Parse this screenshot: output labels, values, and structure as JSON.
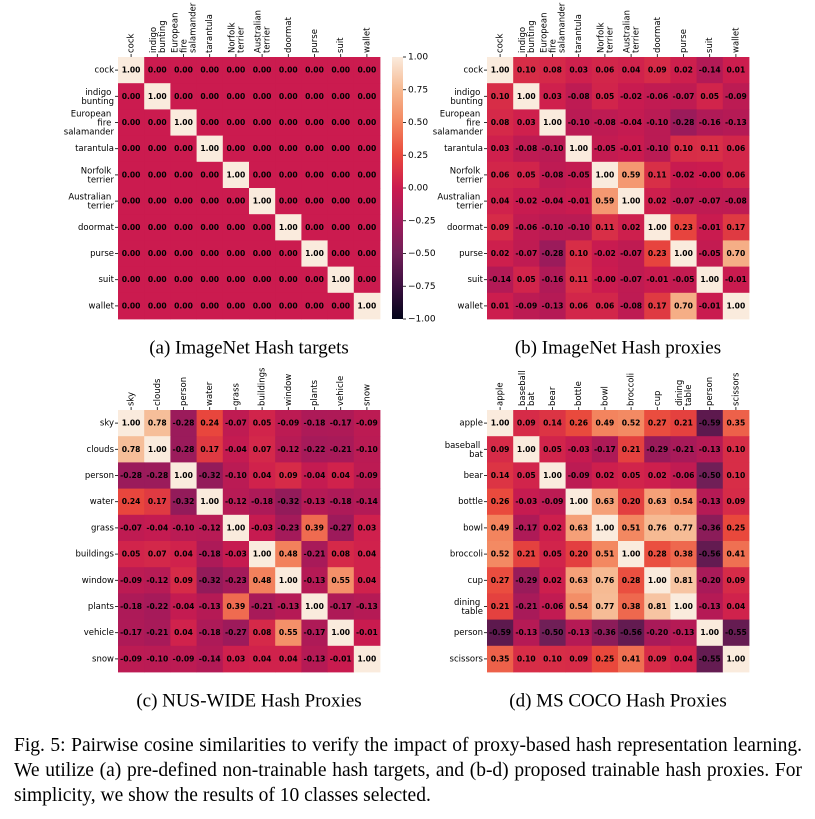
{
  "chart_data": [
    {
      "type": "heatmap",
      "caption": "(a) ImageNet Hash targets",
      "vlim": [
        -1,
        1
      ],
      "categories": [
        "cock",
        "indigo bunting",
        "European fire salamander",
        "tarantula",
        "Norfolk terrier",
        "Australian terrier",
        "doormat",
        "purse",
        "suit",
        "wallet"
      ],
      "values": [
        [
          1,
          0,
          0,
          0,
          0,
          0,
          0,
          0,
          0,
          0
        ],
        [
          0,
          1,
          0,
          0,
          0,
          0,
          0,
          0,
          0,
          0
        ],
        [
          0,
          0,
          1,
          0,
          0,
          0,
          0,
          0,
          0,
          0
        ],
        [
          0,
          0,
          0,
          1,
          0,
          0,
          0,
          0,
          0,
          0
        ],
        [
          0,
          0,
          0,
          0,
          1,
          0,
          0,
          0,
          0,
          0
        ],
        [
          0,
          0,
          0,
          0,
          0,
          1,
          0,
          0,
          0,
          0
        ],
        [
          0,
          0,
          0,
          0,
          0,
          0,
          1,
          0,
          0,
          0
        ],
        [
          0,
          0,
          0,
          0,
          0,
          0,
          0,
          1,
          0,
          0
        ],
        [
          0,
          0,
          0,
          0,
          0,
          0,
          0,
          0,
          1,
          0
        ],
        [
          0,
          0,
          0,
          0,
          0,
          0,
          0,
          0,
          0,
          1
        ]
      ],
      "value_labels": [
        [
          "1.00",
          "0.00",
          "0.00",
          "0.00",
          "0.00",
          "0.00",
          "0.00",
          "0.00",
          "0.00",
          "0.00"
        ],
        [
          "0.00",
          "1.00",
          "0.00",
          "0.00",
          "0.00",
          "0.00",
          "0.00",
          "0.00",
          "0.00",
          "0.00"
        ],
        [
          "0.00",
          "0.00",
          "1.00",
          "0.00",
          "0.00",
          "0.00",
          "0.00",
          "0.00",
          "0.00",
          "0.00"
        ],
        [
          "0.00",
          "0.00",
          "0.00",
          "1.00",
          "0.00",
          "0.00",
          "0.00",
          "0.00",
          "0.00",
          "0.00"
        ],
        [
          "0.00",
          "0.00",
          "0.00",
          "0.00",
          "1.00",
          "0.00",
          "0.00",
          "0.00",
          "0.00",
          "0.00"
        ],
        [
          "0.00",
          "0.00",
          "0.00",
          "0.00",
          "0.00",
          "1.00",
          "0.00",
          "0.00",
          "0.00",
          "0.00"
        ],
        [
          "0.00",
          "0.00",
          "0.00",
          "0.00",
          "0.00",
          "0.00",
          "1.00",
          "0.00",
          "0.00",
          "0.00"
        ],
        [
          "0.00",
          "0.00",
          "0.00",
          "0.00",
          "0.00",
          "0.00",
          "0.00",
          "1.00",
          "0.00",
          "0.00"
        ],
        [
          "0.00",
          "0.00",
          "0.00",
          "0.00",
          "0.00",
          "0.00",
          "0.00",
          "0.00",
          "1.00",
          "0.00"
        ],
        [
          "0.00",
          "0.00",
          "0.00",
          "0.00",
          "0.00",
          "0.00",
          "0.00",
          "0.00",
          "0.00",
          "1.00"
        ]
      ],
      "colorbar_ticks": [
        {
          "value": 1,
          "label": "1.00"
        },
        {
          "value": 0.75,
          "label": "0.75"
        },
        {
          "value": 0.5,
          "label": "0.50"
        },
        {
          "value": 0.25,
          "label": "0.25"
        },
        {
          "value": 0,
          "label": "0.00"
        },
        {
          "value": -0.25,
          "label": "−0.25"
        },
        {
          "value": -0.5,
          "label": "−0.50"
        },
        {
          "value": -0.75,
          "label": "−0.75"
        },
        {
          "value": -1,
          "label": "−1.00"
        }
      ]
    },
    {
      "type": "heatmap",
      "caption": "(b) ImageNet Hash proxies",
      "vlim": [
        -1,
        1
      ],
      "categories": [
        "cock",
        "indigo bunting",
        "European fire salamander",
        "tarantula",
        "Norfolk terrier",
        "Australian terrier",
        "doormat",
        "purse",
        "suit",
        "wallet"
      ],
      "values": [
        [
          1,
          0.1,
          0.08,
          0.03,
          0.06,
          0.04,
          0.09,
          0.02,
          -0.14,
          0.01
        ],
        [
          0.1,
          1,
          0.03,
          -0.08,
          0.05,
          -0.02,
          -0.06,
          -0.07,
          0.05,
          -0.09
        ],
        [
          0.08,
          0.03,
          1,
          -0.1,
          -0.08,
          -0.04,
          -0.1,
          -0.28,
          -0.16,
          -0.13
        ],
        [
          0.03,
          -0.08,
          -0.1,
          1,
          -0.05,
          -0.01,
          -0.1,
          0.1,
          0.11,
          0.06
        ],
        [
          0.06,
          0.05,
          -0.08,
          -0.05,
          1,
          0.59,
          0.11,
          -0.02,
          0,
          0.06
        ],
        [
          0.04,
          -0.02,
          -0.04,
          -0.01,
          0.59,
          1,
          0.02,
          -0.07,
          -0.07,
          -0.08
        ],
        [
          0.09,
          -0.06,
          -0.1,
          -0.1,
          0.11,
          0.02,
          1,
          0.23,
          -0.01,
          0.17
        ],
        [
          0.02,
          -0.07,
          -0.28,
          0.1,
          -0.02,
          -0.07,
          0.23,
          1,
          -0.05,
          0.7
        ],
        [
          -0.14,
          0.05,
          -0.16,
          0.11,
          0,
          -0.07,
          -0.01,
          -0.05,
          1,
          -0.01
        ],
        [
          0.01,
          -0.09,
          -0.13,
          0.06,
          0.06,
          -0.08,
          0.17,
          0.7,
          -0.01,
          1
        ]
      ],
      "value_labels": [
        [
          "1.00",
          "0.10",
          "0.08",
          "0.03",
          "0.06",
          "0.04",
          "0.09",
          "0.02",
          "-0.14",
          "0.01"
        ],
        [
          "0.10",
          "1.00",
          "0.03",
          "-0.08",
          "0.05",
          "-0.02",
          "-0.06",
          "-0.07",
          "0.05",
          "-0.09"
        ],
        [
          "0.08",
          "0.03",
          "1.00",
          "-0.10",
          "-0.08",
          "-0.04",
          "-0.10",
          "-0.28",
          "-0.16",
          "-0.13"
        ],
        [
          "0.03",
          "-0.08",
          "-0.10",
          "1.00",
          "-0.05",
          "-0.01",
          "-0.10",
          "0.10",
          "0.11",
          "0.06"
        ],
        [
          "0.06",
          "0.05",
          "-0.08",
          "-0.05",
          "1.00",
          "0.59",
          "0.11",
          "-0.02",
          "-0.00",
          "0.06"
        ],
        [
          "0.04",
          "-0.02",
          "-0.04",
          "-0.01",
          "0.59",
          "1.00",
          "0.02",
          "-0.07",
          "-0.07",
          "-0.08"
        ],
        [
          "0.09",
          "-0.06",
          "-0.10",
          "-0.10",
          "0.11",
          "0.02",
          "1.00",
          "0.23",
          "-0.01",
          "0.17"
        ],
        [
          "0.02",
          "-0.07",
          "-0.28",
          "0.10",
          "-0.02",
          "-0.07",
          "0.23",
          "1.00",
          "-0.05",
          "0.70"
        ],
        [
          "-0.14",
          "0.05",
          "-0.16",
          "0.11",
          "-0.00",
          "-0.07",
          "-0.01",
          "-0.05",
          "1.00",
          "-0.01"
        ],
        [
          "0.01",
          "-0.09",
          "-0.13",
          "0.06",
          "0.06",
          "-0.08",
          "0.17",
          "0.70",
          "-0.01",
          "1.00"
        ]
      ]
    },
    {
      "type": "heatmap",
      "caption": "(c) NUS-WIDE Hash Proxies",
      "vlim": [
        -1,
        1
      ],
      "categories": [
        "sky",
        "clouds",
        "person",
        "water",
        "grass",
        "buildings",
        "window",
        "plants",
        "vehicle",
        "snow"
      ],
      "values": [
        [
          1,
          0.78,
          -0.28,
          0.24,
          -0.07,
          0.05,
          -0.09,
          -0.18,
          -0.17,
          -0.09
        ],
        [
          0.78,
          1,
          -0.28,
          0.17,
          -0.04,
          0.07,
          -0.12,
          -0.22,
          -0.21,
          -0.1
        ],
        [
          -0.28,
          -0.28,
          1,
          -0.32,
          -0.1,
          0.04,
          0.09,
          -0.04,
          0.04,
          -0.09
        ],
        [
          0.24,
          0.17,
          -0.32,
          1,
          -0.12,
          -0.18,
          -0.32,
          -0.13,
          -0.18,
          -0.14
        ],
        [
          -0.07,
          -0.04,
          -0.1,
          -0.12,
          1,
          -0.03,
          -0.23,
          0.39,
          -0.27,
          0.03
        ],
        [
          0.05,
          0.07,
          0.04,
          -0.18,
          -0.03,
          1,
          0.48,
          -0.21,
          0.08,
          0.04
        ],
        [
          -0.09,
          -0.12,
          0.09,
          -0.32,
          -0.23,
          0.48,
          1,
          -0.13,
          0.55,
          0.04
        ],
        [
          -0.18,
          -0.22,
          -0.04,
          -0.13,
          0.39,
          -0.21,
          -0.13,
          1,
          -0.17,
          -0.13
        ],
        [
          -0.17,
          -0.21,
          0.04,
          -0.18,
          -0.27,
          0.08,
          0.55,
          -0.17,
          1,
          -0.01
        ],
        [
          -0.09,
          -0.1,
          -0.09,
          -0.14,
          0.03,
          0.04,
          0.04,
          -0.13,
          -0.01,
          1
        ]
      ],
      "value_labels": [
        [
          "1.00",
          "0.78",
          "-0.28",
          "0.24",
          "-0.07",
          "0.05",
          "-0.09",
          "-0.18",
          "-0.17",
          "-0.09"
        ],
        [
          "0.78",
          "1.00",
          "-0.28",
          "0.17",
          "-0.04",
          "0.07",
          "-0.12",
          "-0.22",
          "-0.21",
          "-0.10"
        ],
        [
          "-0.28",
          "-0.28",
          "1.00",
          "-0.32",
          "-0.10",
          "0.04",
          "0.09",
          "-0.04",
          "0.04",
          "-0.09"
        ],
        [
          "0.24",
          "0.17",
          "-0.32",
          "1.00",
          "-0.12",
          "-0.18",
          "-0.32",
          "-0.13",
          "-0.18",
          "-0.14"
        ],
        [
          "-0.07",
          "-0.04",
          "-0.10",
          "-0.12",
          "1.00",
          "-0.03",
          "-0.23",
          "0.39",
          "-0.27",
          "0.03"
        ],
        [
          "0.05",
          "0.07",
          "0.04",
          "-0.18",
          "-0.03",
          "1.00",
          "0.48",
          "-0.21",
          "0.08",
          "0.04"
        ],
        [
          "-0.09",
          "-0.12",
          "0.09",
          "-0.32",
          "-0.23",
          "0.48",
          "1.00",
          "-0.13",
          "0.55",
          "0.04"
        ],
        [
          "-0.18",
          "-0.22",
          "-0.04",
          "-0.13",
          "0.39",
          "-0.21",
          "-0.13",
          "1.00",
          "-0.17",
          "-0.13"
        ],
        [
          "-0.17",
          "-0.21",
          "0.04",
          "-0.18",
          "-0.27",
          "0.08",
          "0.55",
          "-0.17",
          "1.00",
          "-0.01"
        ],
        [
          "-0.09",
          "-0.10",
          "-0.09",
          "-0.14",
          "0.03",
          "0.04",
          "0.04",
          "-0.13",
          "-0.01",
          "1.00"
        ]
      ]
    },
    {
      "type": "heatmap",
      "caption": "(d) MS COCO Hash Proxies",
      "vlim": [
        -1,
        1
      ],
      "categories": [
        "apple",
        "baseball bat",
        "bear",
        "bottle",
        "bowl",
        "broccoli",
        "cup",
        "dining table",
        "person",
        "scissors"
      ],
      "values": [
        [
          1,
          0.09,
          0.14,
          0.26,
          0.49,
          0.52,
          0.27,
          0.21,
          -0.59,
          0.35
        ],
        [
          0.09,
          1,
          0.05,
          -0.03,
          -0.17,
          0.21,
          -0.29,
          -0.21,
          -0.13,
          0.1
        ],
        [
          0.14,
          0.05,
          1,
          -0.09,
          0.02,
          0.05,
          0.02,
          -0.06,
          -0.5,
          0.1
        ],
        [
          0.26,
          -0.03,
          -0.09,
          1,
          0.63,
          0.2,
          0.63,
          0.54,
          -0.13,
          0.09
        ],
        [
          0.49,
          -0.17,
          0.02,
          0.63,
          1,
          0.51,
          0.76,
          0.77,
          -0.36,
          0.25
        ],
        [
          0.52,
          0.21,
          0.05,
          0.2,
          0.51,
          1,
          0.28,
          0.38,
          -0.56,
          0.41
        ],
        [
          0.27,
          -0.29,
          0.02,
          0.63,
          0.76,
          0.28,
          1,
          0.81,
          -0.2,
          0.09
        ],
        [
          0.21,
          -0.21,
          -0.06,
          0.54,
          0.77,
          0.38,
          0.81,
          1,
          -0.13,
          0.04
        ],
        [
          -0.59,
          -0.13,
          -0.5,
          -0.13,
          -0.36,
          -0.56,
          -0.2,
          -0.13,
          1,
          -0.55
        ],
        [
          0.35,
          0.1,
          0.1,
          0.09,
          0.25,
          0.41,
          0.09,
          0.04,
          -0.55,
          1
        ]
      ],
      "value_labels": [
        [
          "1.00",
          "0.09",
          "0.14",
          "0.26",
          "0.49",
          "0.52",
          "0.27",
          "0.21",
          "-0.59",
          "0.35"
        ],
        [
          "0.09",
          "1.00",
          "0.05",
          "-0.03",
          "-0.17",
          "0.21",
          "-0.29",
          "-0.21",
          "-0.13",
          "0.10"
        ],
        [
          "0.14",
          "0.05",
          "1.00",
          "-0.09",
          "0.02",
          "0.05",
          "0.02",
          "-0.06",
          "-0.50",
          "0.10"
        ],
        [
          "0.26",
          "-0.03",
          "-0.09",
          "1.00",
          "0.63",
          "0.20",
          "0.63",
          "0.54",
          "-0.13",
          "0.09"
        ],
        [
          "0.49",
          "-0.17",
          "0.02",
          "0.63",
          "1.00",
          "0.51",
          "0.76",
          "0.77",
          "-0.36",
          "0.25"
        ],
        [
          "0.52",
          "0.21",
          "0.05",
          "0.20",
          "0.51",
          "1.00",
          "0.28",
          "0.38",
          "-0.56",
          "0.41"
        ],
        [
          "0.27",
          "-0.29",
          "0.02",
          "0.63",
          "0.76",
          "0.28",
          "1.00",
          "0.81",
          "-0.20",
          "0.09"
        ],
        [
          "0.21",
          "-0.21",
          "-0.06",
          "0.54",
          "0.77",
          "0.38",
          "0.81",
          "1.00",
          "-0.13",
          "0.04"
        ],
        [
          "-0.59",
          "-0.13",
          "-0.50",
          "-0.13",
          "-0.36",
          "-0.56",
          "-0.20",
          "-0.13",
          "1.00",
          "-0.55"
        ],
        [
          "0.35",
          "0.10",
          "0.10",
          "0.09",
          "0.25",
          "0.41",
          "0.09",
          "0.04",
          "-0.55",
          "1.00"
        ]
      ]
    }
  ],
  "figure_caption": "Fig. 5: Pairwise cosine similarities to verify the impact of proxy-based hash representation learning. We utilize (a) pre-defined non-trainable hash targets, and (b-d) proposed trainable hash proxies. For simplicity, we show the results of 10 classes selected."
}
